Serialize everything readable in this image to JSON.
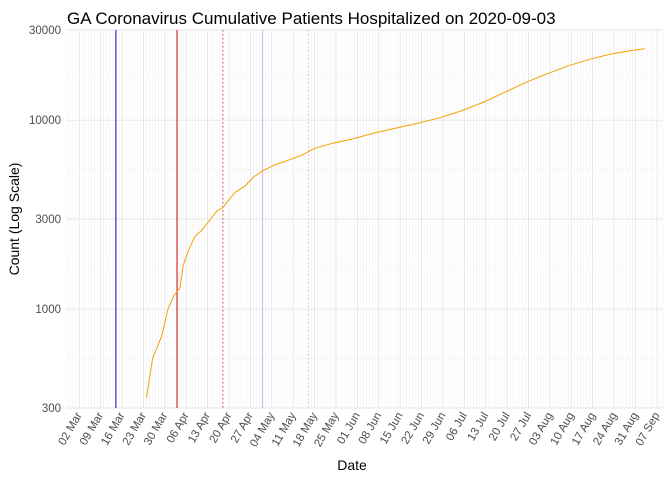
{
  "chart_data": {
    "type": "line",
    "title": "GA Coronavirus Cumulative Patients Hospitalized on 2020-09-03",
    "xlabel": "Date",
    "ylabel": "Count (Log Scale)",
    "y_scale": "log10",
    "ylim": [
      300,
      30000
    ],
    "xlim": [
      "2020-02-27",
      "2020-09-09"
    ],
    "y_ticks": [
      {
        "value": 300,
        "label": "300"
      },
      {
        "value": 1000,
        "label": "1000"
      },
      {
        "value": 3000,
        "label": "3000"
      },
      {
        "value": 10000,
        "label": "10000"
      },
      {
        "value": 30000,
        "label": "30000"
      }
    ],
    "x_ticks": [
      {
        "date": "2020-03-02",
        "label": "02 Mar"
      },
      {
        "date": "2020-03-09",
        "label": "09 Mar"
      },
      {
        "date": "2020-03-16",
        "label": "16 Mar"
      },
      {
        "date": "2020-03-23",
        "label": "23 Mar"
      },
      {
        "date": "2020-03-30",
        "label": "30 Mar"
      },
      {
        "date": "2020-04-06",
        "label": "06 Apr"
      },
      {
        "date": "2020-04-13",
        "label": "13 Apr"
      },
      {
        "date": "2020-04-20",
        "label": "20 Apr"
      },
      {
        "date": "2020-04-27",
        "label": "27 Apr"
      },
      {
        "date": "2020-05-04",
        "label": "04 May"
      },
      {
        "date": "2020-05-11",
        "label": "11 May"
      },
      {
        "date": "2020-05-18",
        "label": "18 May"
      },
      {
        "date": "2020-05-25",
        "label": "25 May"
      },
      {
        "date": "2020-06-01",
        "label": "01 Jun"
      },
      {
        "date": "2020-06-08",
        "label": "08 Jun"
      },
      {
        "date": "2020-06-15",
        "label": "15 Jun"
      },
      {
        "date": "2020-06-22",
        "label": "22 Jun"
      },
      {
        "date": "2020-06-29",
        "label": "29 Jun"
      },
      {
        "date": "2020-07-06",
        "label": "06 Jul"
      },
      {
        "date": "2020-07-13",
        "label": "13 Jul"
      },
      {
        "date": "2020-07-20",
        "label": "20 Jul"
      },
      {
        "date": "2020-07-27",
        "label": "27 Jul"
      },
      {
        "date": "2020-08-03",
        "label": "03 Aug"
      },
      {
        "date": "2020-08-10",
        "label": "10 Aug"
      },
      {
        "date": "2020-08-17",
        "label": "17 Aug"
      },
      {
        "date": "2020-08-24",
        "label": "24 Aug"
      },
      {
        "date": "2020-08-31",
        "label": "31 Aug"
      },
      {
        "date": "2020-09-07",
        "label": "07 Sep"
      }
    ],
    "reference_lines": [
      {
        "date": "2020-03-14",
        "color": "#0000cc",
        "style": "solid"
      },
      {
        "date": "2020-04-03",
        "color": "#cc0000",
        "style": "solid"
      },
      {
        "date": "2020-04-18",
        "color": "#cc3333",
        "style": "dotted"
      },
      {
        "date": "2020-05-01",
        "color": "#c9b3e6",
        "style": "solid"
      },
      {
        "date": "2020-05-16",
        "color": "#f2b3b3",
        "style": "dotted"
      }
    ],
    "series": [
      {
        "color": "#f5a000",
        "points": [
          [
            "2020-03-24",
            340
          ],
          [
            "2020-03-26",
            550
          ],
          [
            "2020-03-29",
            720
          ],
          [
            "2020-03-31",
            1000
          ],
          [
            "2020-04-02",
            1180
          ],
          [
            "2020-04-04",
            1300
          ],
          [
            "2020-04-05",
            1700
          ],
          [
            "2020-04-07",
            2100
          ],
          [
            "2020-04-09",
            2450
          ],
          [
            "2020-04-11",
            2600
          ],
          [
            "2020-04-14",
            3000
          ],
          [
            "2020-04-16",
            3300
          ],
          [
            "2020-04-18",
            3450
          ],
          [
            "2020-04-20",
            3800
          ],
          [
            "2020-04-22",
            4150
          ],
          [
            "2020-04-25",
            4450
          ],
          [
            "2020-04-28",
            5000
          ],
          [
            "2020-05-01",
            5400
          ],
          [
            "2020-05-05",
            5800
          ],
          [
            "2020-05-09",
            6100
          ],
          [
            "2020-05-14",
            6550
          ],
          [
            "2020-05-18",
            7100
          ],
          [
            "2020-05-24",
            7550
          ],
          [
            "2020-05-31",
            8000
          ],
          [
            "2020-06-07",
            8600
          ],
          [
            "2020-06-14",
            9100
          ],
          [
            "2020-06-21",
            9650
          ],
          [
            "2020-06-28",
            10300
          ],
          [
            "2020-07-05",
            11200
          ],
          [
            "2020-07-12",
            12400
          ],
          [
            "2020-07-19",
            14000
          ],
          [
            "2020-07-26",
            15800
          ],
          [
            "2020-08-02",
            17600
          ],
          [
            "2020-08-09",
            19400
          ],
          [
            "2020-08-16",
            21000
          ],
          [
            "2020-08-23",
            22400
          ],
          [
            "2020-08-30",
            23400
          ],
          [
            "2020-09-03",
            23900
          ]
        ]
      }
    ]
  }
}
